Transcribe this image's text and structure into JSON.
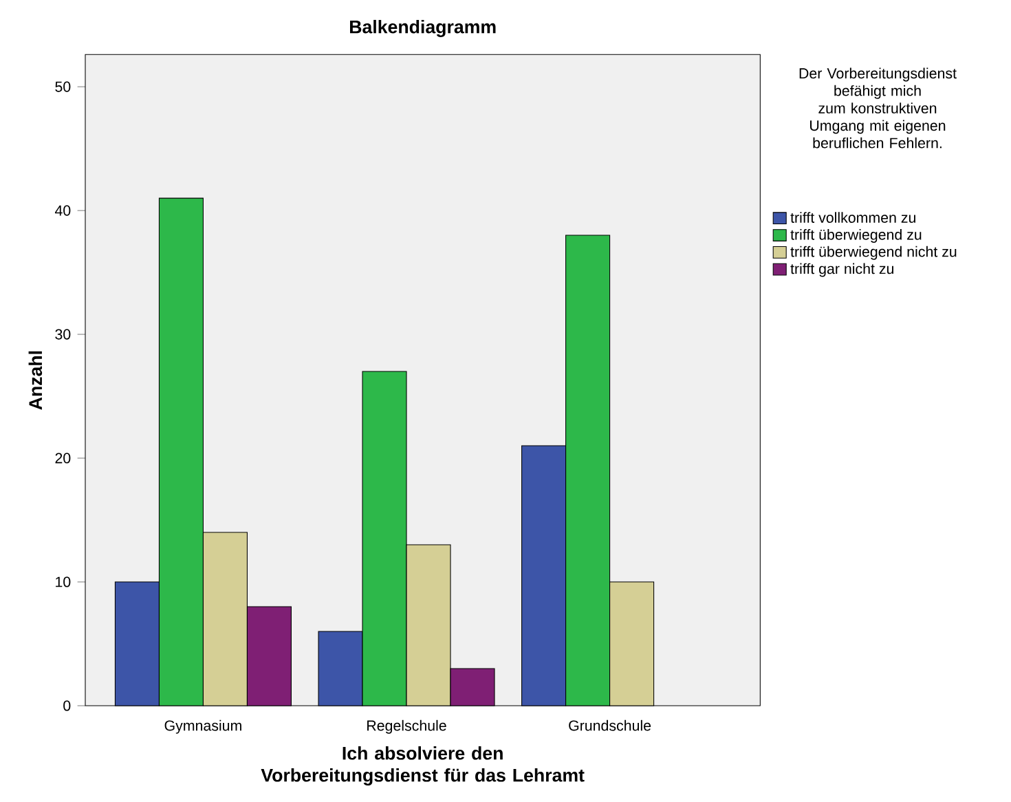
{
  "chart_data": {
    "type": "bar",
    "title": "Balkendiagramm",
    "xlabel": "Ich absolviere den Vorbereitungsdienst für das Lehramt",
    "ylabel": "Anzahl",
    "legend_title": "Der Vorbereitungsdienst befähigt mich zum konstruktiven Umgang mit eigenen beruflichen Fehlern.",
    "categories": [
      "Gymnasium",
      "Regelschule",
      "Grundschule"
    ],
    "series": [
      {
        "name": "trifft vollkommen zu",
        "color": "#3d55a8",
        "values": [
          10,
          6,
          21
        ]
      },
      {
        "name": "trifft überwiegend zu",
        "color": "#2db84a",
        "values": [
          41,
          27,
          38
        ]
      },
      {
        "name": "trifft überwiegend nicht zu",
        "color": "#d5cf95",
        "values": [
          14,
          13,
          10
        ]
      },
      {
        "name": "trifft gar nicht zu",
        "color": "#7f1f74",
        "values": [
          8,
          3,
          null
        ]
      }
    ],
    "ylim": [
      0,
      52.6
    ],
    "yticks": [
      0,
      10,
      20,
      30,
      40,
      50
    ],
    "legend": "right",
    "grid": false
  }
}
